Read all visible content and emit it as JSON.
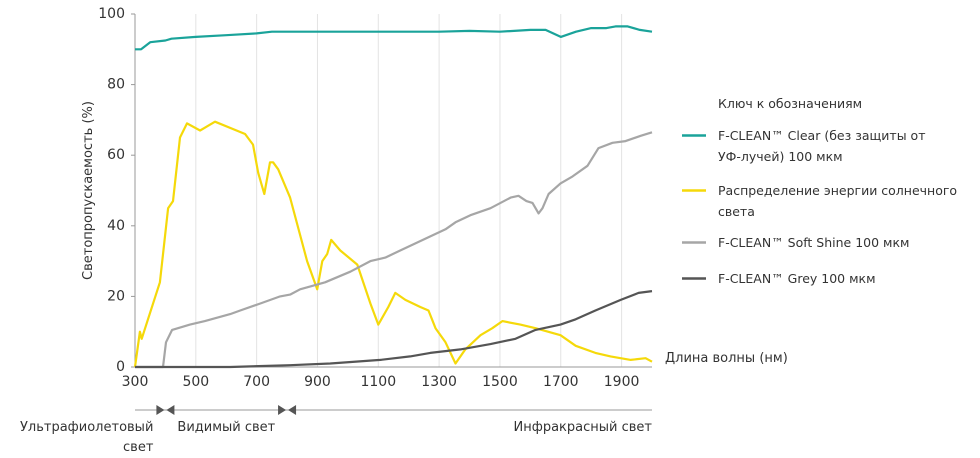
{
  "chart_data": {
    "type": "line",
    "ylabel": "Светопропускаемость (%)",
    "xlabel": "Длина волны (нм)",
    "xlim": [
      300,
      2000
    ],
    "xticks": [
      300,
      500,
      700,
      900,
      1100,
      1300,
      1500,
      1700,
      1900
    ],
    "ylim": [
      0,
      100
    ],
    "yticks": [
      0,
      20,
      40,
      60,
      80,
      100
    ],
    "grid": "x",
    "legend_title": "Ключ к обозначениям",
    "legend": "right",
    "series": [
      {
        "name": "F-CLEAN™ Clear (без защиты от УФ-лучей) 100 мкм",
        "color": "#1aa39a",
        "x": [
          300,
          320,
          350,
          400,
          420,
          500,
          600,
          700,
          750,
          900,
          1100,
          1300,
          1400,
          1500,
          1600,
          1650,
          1700,
          1750,
          1800,
          1850,
          1880,
          1920,
          1960,
          2000
        ],
        "values": [
          90,
          90,
          92,
          92.5,
          93,
          93.5,
          94,
          94.5,
          95,
          95,
          95,
          95,
          95.2,
          95,
          95.5,
          95.5,
          93.5,
          95,
          96,
          96,
          96.5,
          96.5,
          95.5,
          95
        ]
      },
      {
        "name": "Распределение энергии солнечного света",
        "color": "#f5d90a",
        "x": [
          300,
          316,
          322,
          382,
          409,
          425,
          448,
          471,
          514,
          563,
          662,
          688,
          705,
          725,
          744,
          754,
          771,
          810,
          866,
          899,
          916,
          932,
          945,
          975,
          1031,
          1074,
          1100,
          1133,
          1156,
          1189,
          1238,
          1265,
          1288,
          1321,
          1354,
          1386,
          1436,
          1475,
          1508,
          1567,
          1617,
          1699,
          1749,
          1814,
          1864,
          1930,
          1979,
          2000
        ],
        "values": [
          0,
          10,
          8,
          24,
          45,
          47,
          65,
          69,
          67,
          69.5,
          66,
          63,
          55,
          49,
          58,
          58,
          56,
          48,
          30,
          22,
          30,
          32,
          36,
          33,
          29,
          18,
          12,
          17,
          21,
          19,
          17,
          16,
          11,
          7,
          1,
          5,
          9,
          11,
          13,
          12,
          11,
          9,
          6,
          4,
          3,
          2,
          2.5,
          1.5
        ]
      },
      {
        "name": "F-CLEAN™ Soft Shine 100 мкм",
        "color": "#a6a6a6",
        "x": [
          300,
          392,
          402,
          422,
          481,
          530,
          613,
          646,
          712,
          777,
          810,
          843,
          925,
          1008,
          1074,
          1123,
          1172,
          1222,
          1271,
          1321,
          1354,
          1403,
          1469,
          1535,
          1561,
          1587,
          1607,
          1627,
          1640,
          1660,
          1699,
          1739,
          1788,
          1824,
          1870,
          1913,
          1963,
          2000
        ],
        "values": [
          0,
          0,
          7,
          10.5,
          12,
          13,
          15,
          16,
          18,
          20,
          20.5,
          22,
          24,
          27,
          30,
          31,
          33,
          35,
          37,
          39,
          41,
          43,
          45,
          48,
          48.5,
          47,
          46.5,
          43.5,
          45,
          49,
          52,
          54,
          57,
          62,
          63.5,
          64,
          65.5,
          66.5
        ]
      },
      {
        "name": "F-CLEAN™ Grey 100 мкм",
        "color": "#555555",
        "x": [
          300,
          613,
          810,
          942,
          1107,
          1205,
          1271,
          1370,
          1469,
          1551,
          1617,
          1699,
          1749,
          1814,
          1897,
          1956,
          2000
        ],
        "values": [
          0,
          0,
          0.5,
          1,
          2,
          3,
          4,
          5,
          6.5,
          8,
          10.5,
          12,
          13.5,
          16,
          19,
          21,
          21.5
        ]
      }
    ],
    "region_bounds": [
      400,
      800
    ],
    "regions": [
      "Ультрафиолетовый свет",
      "Видимый свет",
      "Инфракрасный свет"
    ]
  }
}
